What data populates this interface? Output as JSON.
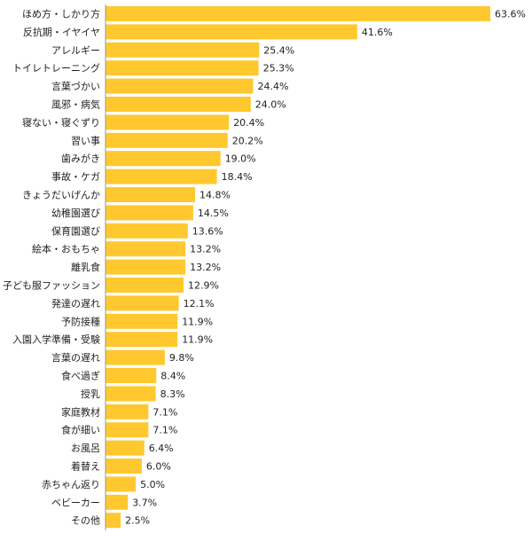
{
  "chart_data": {
    "type": "bar",
    "orientation": "horizontal",
    "title": "",
    "xlabel": "",
    "ylabel": "",
    "value_suffix": "%",
    "xlim": [
      0,
      63.6
    ],
    "grid": false,
    "legend": "none",
    "bar_color": "#FFC82E",
    "axis_color": "#999999",
    "categories": [
      "ほめ方・しかり方",
      "反抗期・イヤイヤ",
      "アレルギー",
      "トイレトレーニング",
      "言葉づかい",
      "風邪・病気",
      "寝ない・寝ぐずり",
      "習い事",
      "歯みがき",
      "事故・ケガ",
      "きょうだいげんか",
      "幼稚園選び",
      "保育園選び",
      "絵本・おもちゃ",
      "離乳食",
      "子ども服ファッション",
      "発達の遅れ",
      "予防接種",
      "入園入学準備・受験",
      "言葉の遅れ",
      "食べ過ぎ",
      "授乳",
      "家庭教材",
      "食が細い",
      "お風呂",
      "着替え",
      "赤ちゃん返り",
      "ベビーカー",
      "その他"
    ],
    "values": [
      63.6,
      41.6,
      25.4,
      25.3,
      24.4,
      24.0,
      20.4,
      20.2,
      19.0,
      18.4,
      14.8,
      14.5,
      13.6,
      13.2,
      13.2,
      12.9,
      12.1,
      11.9,
      11.9,
      9.8,
      8.4,
      8.3,
      7.1,
      7.1,
      6.4,
      6.0,
      5.0,
      3.7,
      2.5
    ],
    "value_labels": [
      "63.6%",
      "41.6%",
      "25.4%",
      "25.3%",
      "24.4%",
      "24.0%",
      "20.4%",
      "20.2%",
      "19.0%",
      "18.4%",
      "14.8%",
      "14.5%",
      "13.6%",
      "13.2%",
      "13.2%",
      "12.9%",
      "12.1%",
      "11.9%",
      "11.9%",
      "9.8%",
      "8.4%",
      "8.3%",
      "7.1%",
      "7.1%",
      "6.4%",
      "6.0%",
      "5.0%",
      "3.7%",
      "2.5%"
    ]
  }
}
